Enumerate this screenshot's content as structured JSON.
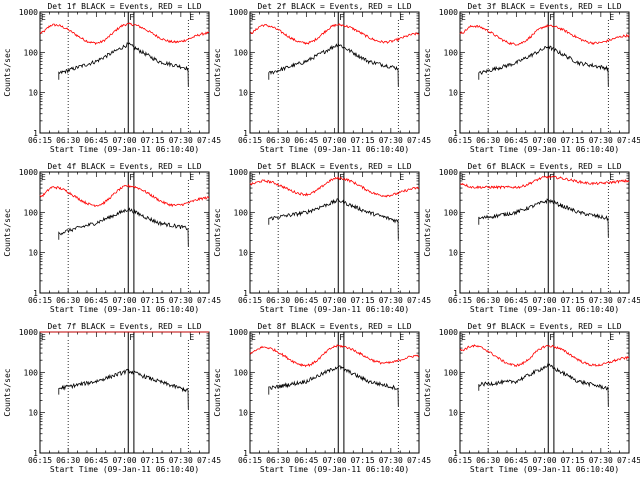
{
  "chart_data": {
    "type": "line",
    "common": {
      "ylabel": "Counts/sec",
      "xlabel": "Start Time (09-Jan-11 06:10:40)",
      "y_scale": "log",
      "ylim": [
        1,
        1000
      ],
      "y_ticks": [
        1,
        10,
        100,
        1000
      ],
      "y_tick_labels": [
        "1",
        "10",
        "100",
        "1000"
      ],
      "xlim": [
        "06:15",
        "07:45"
      ],
      "x_tick_labels": [
        "06:15",
        "06:30",
        "06:45",
        "07:00",
        "07:15",
        "07:30",
        "07:45"
      ],
      "dotted_lines_at": [
        "06:30",
        "07:34"
      ],
      "highlight_box": [
        "07:02",
        "07:05"
      ],
      "markers": [
        {
          "label": "E",
          "at": "06:15"
        },
        {
          "label": "F",
          "at": "07:02"
        },
        {
          "label": "E",
          "at": "07:34"
        }
      ],
      "colors": {
        "events": "#000000",
        "lld": "#ff0000"
      }
    },
    "panels": [
      {
        "title": "Det 1f BLACK = Events, RED = LLD",
        "lld": {
          "start": 300,
          "peak1": 480,
          "valley": 170,
          "peak2": 500,
          "end_low": 180,
          "end": 300
        },
        "events": {
          "start": 30,
          "mid": 60,
          "peak": 160,
          "end": 40
        }
      },
      {
        "title": "Det 2f BLACK = Events, RED = LLD",
        "lld": {
          "start": 300,
          "peak1": 470,
          "valley": 170,
          "peak2": 480,
          "end_low": 180,
          "end": 290
        },
        "events": {
          "start": 30,
          "mid": 60,
          "peak": 160,
          "end": 40
        }
      },
      {
        "title": "Det 3f BLACK = Events, RED = LLD",
        "lld": {
          "start": 300,
          "peak1": 450,
          "valley": 160,
          "peak2": 450,
          "end_low": 170,
          "end": 260
        },
        "events": {
          "start": 30,
          "mid": 55,
          "peak": 140,
          "end": 40
        }
      },
      {
        "title": "Det 4f BLACK = Events, RED = LLD",
        "lld": {
          "start": 250,
          "peak1": 420,
          "valley": 150,
          "peak2": 450,
          "end_low": 150,
          "end": 230
        },
        "events": {
          "start": 30,
          "mid": 55,
          "peak": 120,
          "end": 40
        }
      },
      {
        "title": "Det 5f BLACK = Events, RED = LLD",
        "lld": {
          "start": 500,
          "peak1": 600,
          "valley": 280,
          "peak2": 700,
          "end_low": 260,
          "end": 400
        },
        "events": {
          "start": 70,
          "mid": 100,
          "peak": 200,
          "end": 60
        }
      },
      {
        "title": "Det 6f BLACK = Events, RED = LLD",
        "lld": {
          "start": 520,
          "peak1": 420,
          "valley": 420,
          "peak2": 750,
          "end_low": 520,
          "end": 600
        },
        "events": {
          "start": 70,
          "mid": 100,
          "peak": 200,
          "end": 70
        }
      },
      {
        "title": "Det 7f BLACK = Events, RED = LLD",
        "lld": {
          "start": 1100,
          "peak1": 1100,
          "valley": 1100,
          "peak2": 1100,
          "end_low": 1100,
          "end": 1100
        },
        "events": {
          "start": 40,
          "mid": 60,
          "peak": 110,
          "end": 35
        }
      },
      {
        "title": "Det 8f BLACK = Events, RED = LLD",
        "lld": {
          "start": 300,
          "peak1": 420,
          "valley": 150,
          "peak2": 450,
          "end_low": 170,
          "end": 260
        },
        "events": {
          "start": 40,
          "mid": 60,
          "peak": 140,
          "end": 40
        }
      },
      {
        "title": "Det 9f BLACK = Events, RED = LLD",
        "lld": {
          "start": 350,
          "peak1": 450,
          "valley": 150,
          "peak2": 450,
          "end_low": 150,
          "end": 230
        },
        "events": {
          "start": 50,
          "mid": 60,
          "peak": 150,
          "end": 40
        }
      }
    ]
  }
}
